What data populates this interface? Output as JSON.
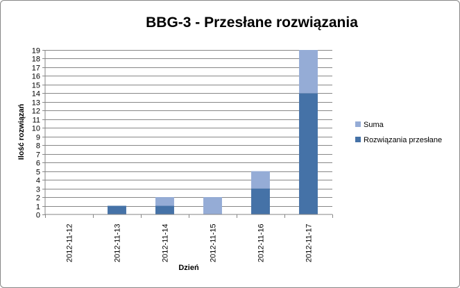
{
  "chart_data": {
    "type": "bar",
    "stacked": true,
    "title": "BBG-3 - Przesłane rozwiązania",
    "xlabel": "Dzień",
    "ylabel": "Ilość rozwiązań",
    "categories": [
      "2012-11-12",
      "2012-11-13",
      "2012-11-14",
      "2012-11-15",
      "2012-11-16",
      "2012-11-17"
    ],
    "series": [
      {
        "name": "Rozwiązania przesłane",
        "color": "#4572A7",
        "values": [
          0,
          1,
          1,
          0,
          3,
          14
        ]
      },
      {
        "name": "Suma",
        "color": "#95ACD6",
        "values": [
          0,
          0,
          1,
          2,
          2,
          5
        ]
      }
    ],
    "ylim": [
      0,
      19
    ],
    "yticks": [
      0,
      1,
      2,
      3,
      4,
      5,
      6,
      7,
      8,
      9,
      10,
      11,
      12,
      13,
      14,
      15,
      16,
      17,
      18,
      19
    ],
    "grid": true,
    "legend_position": "right"
  }
}
